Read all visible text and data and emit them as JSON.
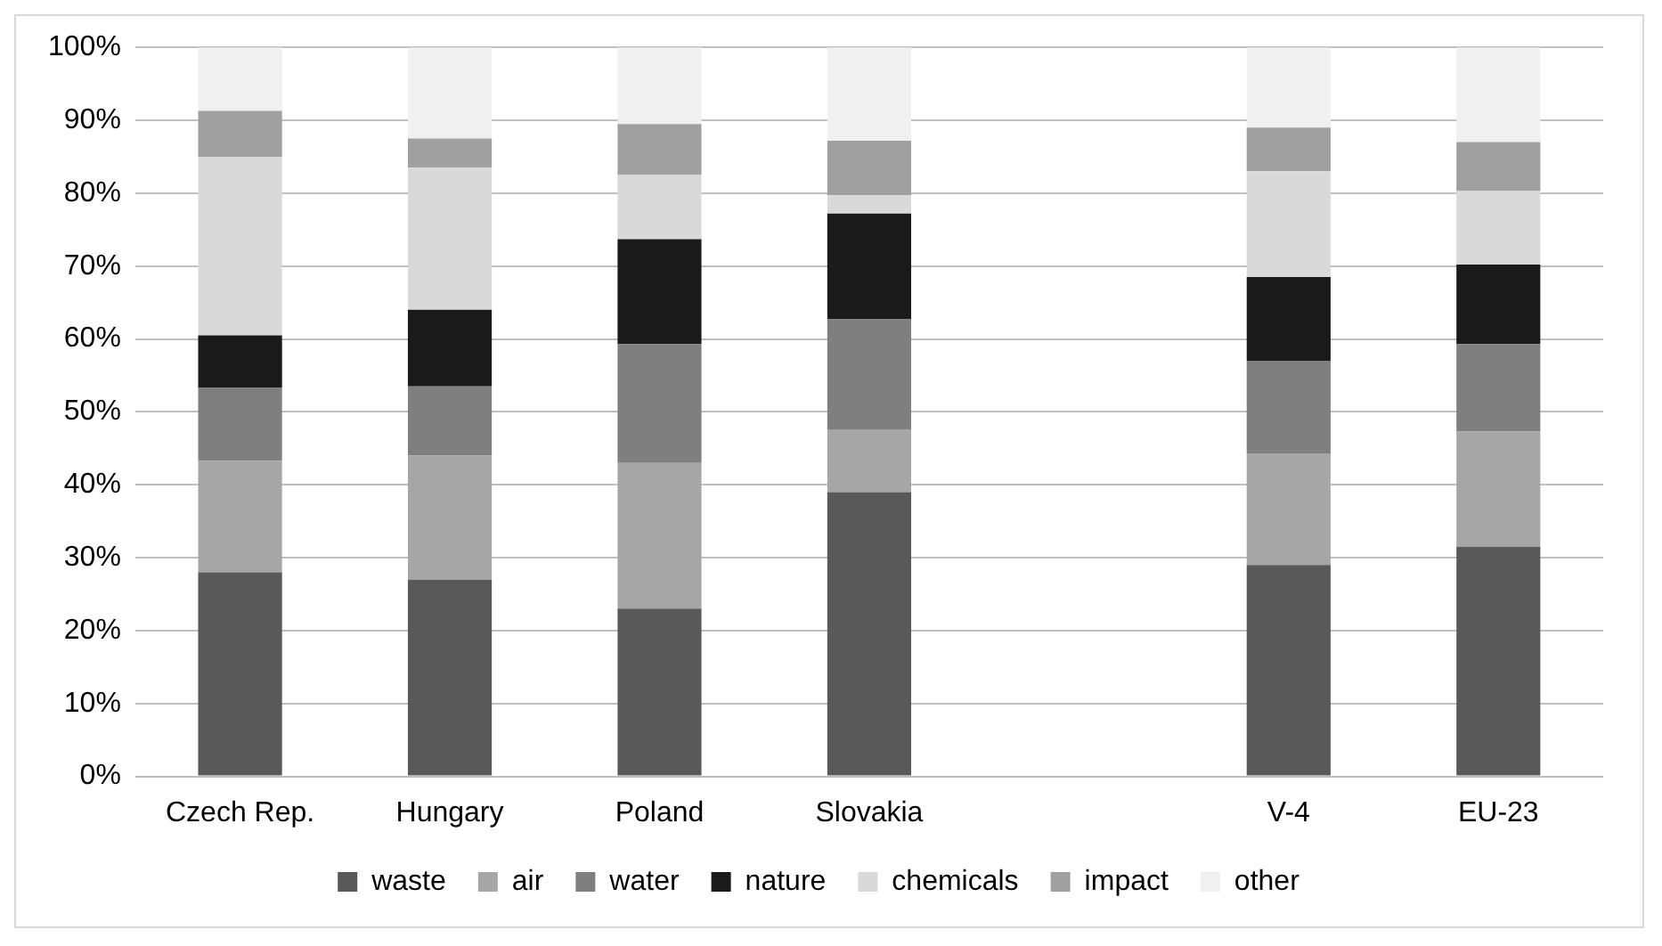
{
  "chart_data": {
    "type": "bar",
    "stacked": true,
    "categories": [
      "Czech Rep.",
      "Hungary",
      "Poland",
      "Slovakia",
      null,
      "V-4",
      "EU-23"
    ],
    "series": [
      {
        "name": "waste",
        "color": "#595959",
        "values": [
          28,
          27,
          23,
          39,
          null,
          29,
          31.5
        ]
      },
      {
        "name": "air",
        "color": "#a6a6a6",
        "values": [
          15.3,
          17,
          20,
          8.5,
          null,
          15.3,
          15.8
        ]
      },
      {
        "name": "water",
        "color": "#7f7f7f",
        "values": [
          10,
          9.5,
          16.3,
          15.2,
          null,
          12.7,
          12
        ]
      },
      {
        "name": "nature",
        "color": "#1a1a1a",
        "values": [
          7.2,
          10.5,
          14.4,
          14.5,
          null,
          11.5,
          10.9
        ]
      },
      {
        "name": "chemicals",
        "color": "#d9d9d9",
        "values": [
          24.5,
          19.5,
          8.8,
          2.5,
          null,
          14.5,
          10.1
        ]
      },
      {
        "name": "impact",
        "color": "#a0a0a0",
        "values": [
          6.3,
          4,
          7,
          7.5,
          null,
          6,
          6.7
        ]
      },
      {
        "name": "other",
        "color": "#f0f0f0",
        "values": [
          8.7,
          12.5,
          10.5,
          13,
          null,
          11,
          13
        ]
      }
    ],
    "ylim": [
      0,
      100
    ],
    "yticks": [
      {
        "value": 0,
        "label": "0%"
      },
      {
        "value": 10,
        "label": "10%"
      },
      {
        "value": 20,
        "label": "20%"
      },
      {
        "value": 30,
        "label": "30%"
      },
      {
        "value": 40,
        "label": "40%"
      },
      {
        "value": 50,
        "label": "50%"
      },
      {
        "value": 60,
        "label": "60%"
      },
      {
        "value": 70,
        "label": "70%"
      },
      {
        "value": 80,
        "label": "80%"
      },
      {
        "value": 90,
        "label": "90%"
      },
      {
        "value": 100,
        "label": "100%"
      }
    ],
    "grid": "y",
    "legend": "bottom"
  }
}
